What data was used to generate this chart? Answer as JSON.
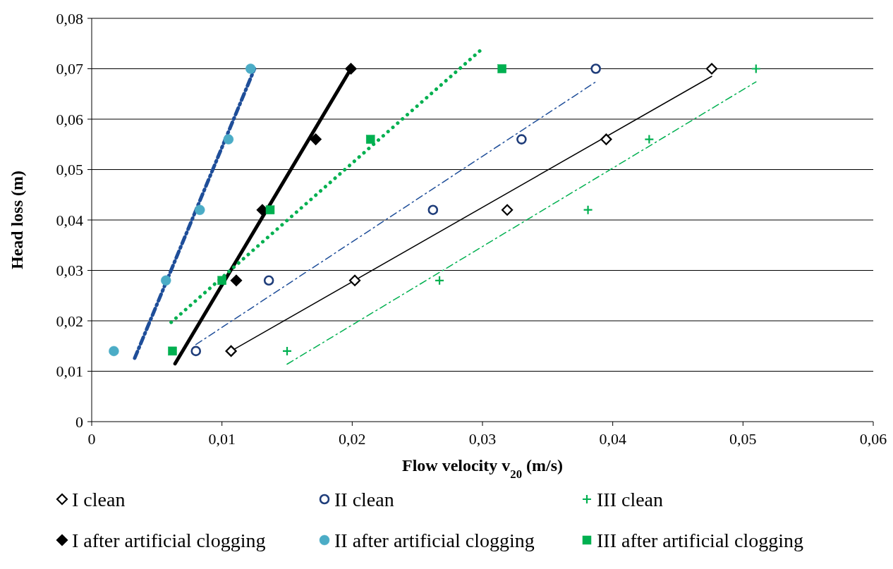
{
  "chart_data": {
    "type": "scatter",
    "xlabel": "Flow velocity v$_{20}$ (m/s)",
    "ylabel": "Head loss (m)",
    "xlim": [
      0,
      0.06
    ],
    "ylim": [
      0,
      0.08
    ],
    "xticks": [
      0,
      {
        "value": 0.01,
        "label": "0,01"
      },
      {
        "value": 0.02,
        "label": "0,02"
      },
      {
        "value": 0.03,
        "label": "0,03"
      },
      {
        "value": 0.04,
        "label": "0,04"
      },
      {
        "value": 0.05,
        "label": "0,05"
      },
      {
        "value": 0.06,
        "label": "0,06"
      }
    ],
    "yticks": [
      0,
      {
        "value": 0.01,
        "label": "0,01"
      },
      {
        "value": 0.02,
        "label": "0,02"
      },
      {
        "value": 0.03,
        "label": "0,03"
      },
      {
        "value": 0.04,
        "label": "0,04"
      },
      {
        "value": 0.05,
        "label": "0,05"
      },
      {
        "value": 0.06,
        "label": "0,06"
      },
      {
        "value": 0.07,
        "label": "0,07"
      },
      {
        "value": 0.08,
        "label": "0,08"
      }
    ],
    "grid": "y",
    "legend": "bottom",
    "series": [
      {
        "name": "I clean",
        "color": "#000000",
        "marker": "diamond",
        "x": [
          0.0107,
          0.0202,
          0.0319,
          0.0395,
          0.0476
        ],
        "values": [
          0.014,
          0.028,
          0.042,
          0.056,
          0.07
        ]
      },
      {
        "name": "II clean",
        "color": "#1f3d7a",
        "marker": "circle",
        "x": [
          0.008,
          0.0136,
          0.0262,
          0.033,
          0.0387
        ],
        "values": [
          0.014,
          0.028,
          0.042,
          0.056,
          0.07
        ]
      },
      {
        "name": "III clean",
        "color": "#00b050",
        "marker": "cross",
        "x": [
          0.015,
          0.0267,
          0.0381,
          0.0428,
          0.051
        ],
        "values": [
          0.014,
          0.028,
          0.042,
          0.056,
          0.07
        ]
      },
      {
        "name": "I after artificial clogging",
        "color": "#000000",
        "marker": "diamond",
        "x": [
          null,
          0.0111,
          0.0131,
          0.0172,
          0.0199
        ],
        "values": [
          null,
          0.028,
          0.042,
          0.056,
          0.07
        ]
      },
      {
        "name": "II after artificial clogging",
        "color": "#4bacc6",
        "marker": "circle",
        "x": [
          0.0017,
          0.0057,
          0.0083,
          0.0105,
          0.0122
        ],
        "values": [
          0.014,
          0.028,
          0.042,
          0.056,
          0.07
        ]
      },
      {
        "name": "III after artificial clogging",
        "color": "#00b050",
        "marker": "square",
        "x": [
          0.0062,
          0.01,
          0.0137,
          0.0214,
          0.0315
        ],
        "values": [
          0.014,
          0.028,
          0.042,
          0.056,
          0.07
        ]
      },
      {
        "type": "line",
        "color": "#000000",
        "line_style": "solid",
        "x": [
          0.0107,
          0.0476
        ],
        "values": [
          0.014,
          0.0685
        ]
      },
      {
        "type": "line",
        "color": "#1f4e99",
        "line_style": "dashed",
        "x": [
          0.008,
          0.0387
        ],
        "values": [
          0.0153,
          0.0674
        ]
      },
      {
        "type": "line",
        "color": "#00b050",
        "line_style": "dashed",
        "x": [
          0.015,
          0.051
        ],
        "values": [
          0.0114,
          0.0674
        ]
      },
      {
        "type": "line",
        "color": "#000000",
        "line_style": "solid",
        "x": [
          0.0064,
          0.0199
        ],
        "values": [
          0.0115,
          0.07
        ]
      },
      {
        "type": "line",
        "color": "#1f4e99",
        "line_style": "dashed",
        "x": [
          0.0033,
          0.0125
        ],
        "values": [
          0.0126,
          0.07
        ]
      },
      {
        "type": "line",
        "color": "#00b050",
        "line_style": "dotted",
        "x": [
          0.0061,
          0.03
        ],
        "values": [
          0.0197,
          0.074
        ]
      }
    ]
  }
}
